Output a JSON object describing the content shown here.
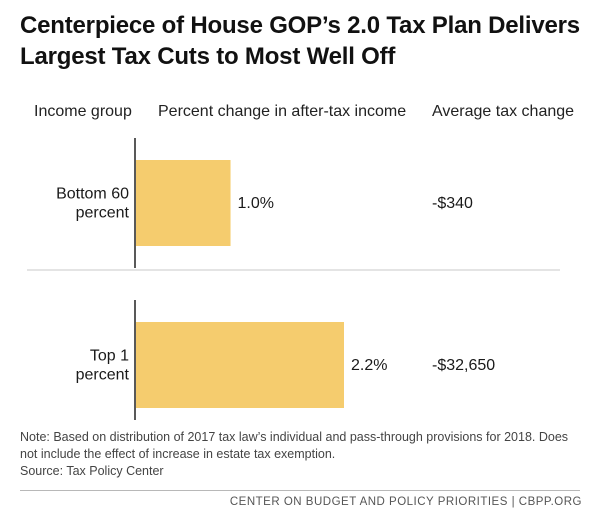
{
  "title": "Centerpiece of House GOP’s 2.0 Tax Plan Delivers Largest Tax Cuts to Most Well Off",
  "columns": {
    "group": "Income group",
    "percent": "Percent change in after-tax income",
    "average": "Average tax change"
  },
  "chart_data": {
    "type": "bar",
    "orientation": "horizontal",
    "title": "Centerpiece of House GOP’s 2.0 Tax Plan Delivers Largest Tax Cuts to Most Well Off",
    "categories": [
      [
        "Bottom 60",
        "percent"
      ],
      [
        "Top 1",
        "percent"
      ]
    ],
    "values": [
      1.0,
      2.2
    ],
    "value_labels": [
      "1.0%",
      "2.2%"
    ],
    "average_tax_change": [
      "-$340",
      "-$32,650"
    ],
    "bar_color": "#f5cc6e",
    "xlim": [
      0,
      2.6
    ],
    "grid": false,
    "legend": "none"
  },
  "note": "Note: Based on distribution of 2017 tax law’s individual and pass-through provisions for 2018. Does not include the effect of increase in estate tax exemption.",
  "source": "Source: Tax Policy Center",
  "footer": "CENTER ON BUDGET AND POLICY PRIORITIES | CBPP.ORG",
  "colors": {
    "bar": "#f5cc6e",
    "axis": "#222222",
    "divider": "#c8c8c8",
    "footer_rule": "#b8b8b8"
  }
}
